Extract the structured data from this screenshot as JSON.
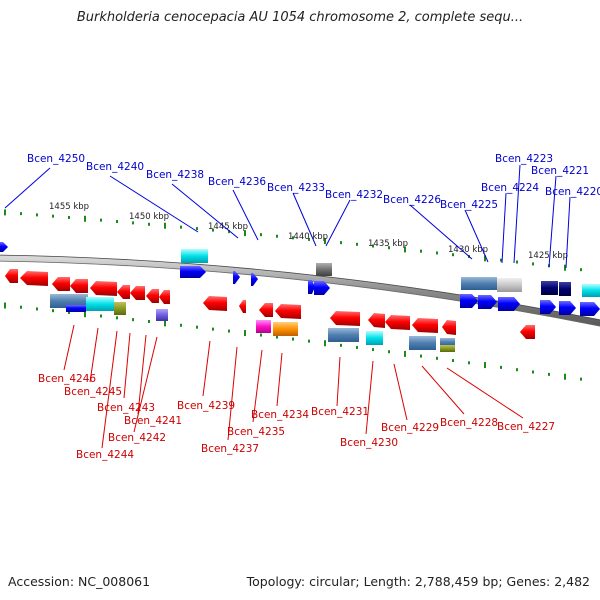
{
  "title": "Burkholderia cenocepacia AU 1054 chromosome 2, complete sequ...",
  "accession": "Accession: NC_008061",
  "summary": "Topology: circular; Length: 2,788,459 bp; Genes: 2,482",
  "colors": {
    "forward_strand": "#0000ee",
    "reverse_strand": "#ee0000",
    "backbone": "#8a8a8a",
    "tick": "#1a8a1a",
    "label_top": "#0000cc",
    "label_bottom": "#cc0000"
  },
  "scale_labels": [
    "1455 kbp",
    "1450 kbp",
    "1445 kbp",
    "1440 kbp",
    "1435 kbp",
    "1430 kbp",
    "1425 kbp"
  ],
  "top_labels": [
    "Bcen_4250",
    "Bcen_4240",
    "Bcen_4238",
    "Bcen_4236",
    "Bcen_4233",
    "Bcen_4232",
    "Bcen_4226",
    "Bcen_4225",
    "Bcen_4224",
    "Bcen_4223",
    "Bcen_4221",
    "Bcen_4220"
  ],
  "bottom_labels": [
    "Bcen_4246",
    "Bcen_4245",
    "Bcen_4243",
    "Bcen_4241",
    "Bcen_4242",
    "Bcen_4244",
    "Bcen_4239",
    "Bcen_4237",
    "Bcen_4235",
    "Bcen_4234",
    "Bcen_4231",
    "Bcen_4230",
    "Bcen_4229",
    "Bcen_4228",
    "Bcen_4227"
  ]
}
